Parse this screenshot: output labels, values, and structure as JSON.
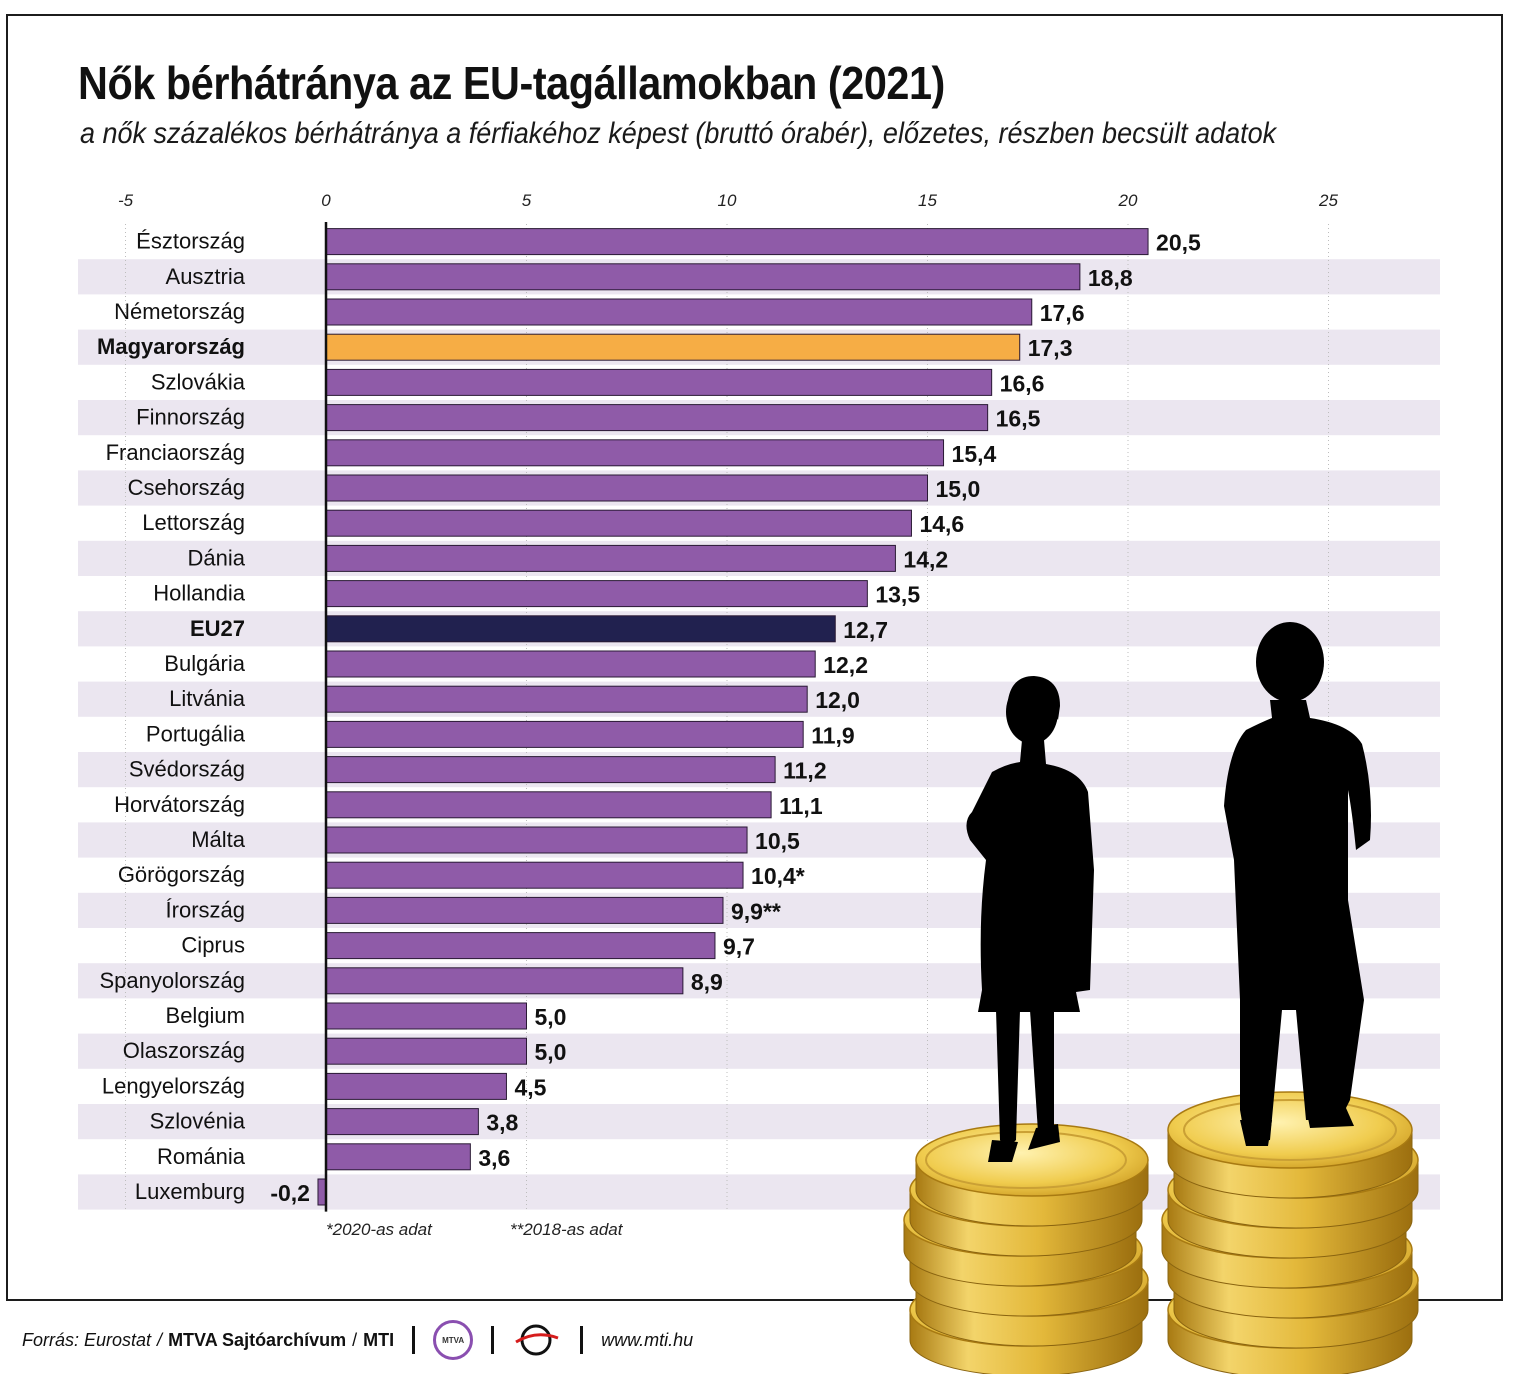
{
  "title": "Nők bérhátránya az EU-tagállamokban (2021)",
  "subtitle": "a nők százalékos bérhátránya a férfiakéhoz képest (bruttó órabér), előzetes, részben becsült adatok",
  "chart_data": {
    "type": "bar",
    "orientation": "horizontal",
    "title": "Nők bérhátránya az EU-tagállamokban (2021)",
    "subtitle": "a nők százalékos bérhátránya a férfiakéhoz képest (bruttó órabér), előzetes, részben becsült adatok",
    "xlim": [
      -5,
      25
    ],
    "x_ticks": [
      "-5",
      "0",
      "5",
      "10",
      "15",
      "20",
      "25"
    ],
    "tick_values": [
      -5,
      0,
      5,
      10,
      15,
      20,
      25
    ],
    "x_axis_position": "top",
    "grid": true,
    "alternating_row_bands": true,
    "categories": [
      "Észtország",
      "Ausztria",
      "Németország",
      "Magyarország",
      "Szlovákia",
      "Finnország",
      "Franciaország",
      "Csehország",
      "Lettország",
      "Dánia",
      "Hollandia",
      "EU27",
      "Bulgária",
      "Litvánia",
      "Portugália",
      "Svédország",
      "Horvátország",
      "Málta",
      "Görögország",
      "Írország",
      "Ciprus",
      "Spanyolország",
      "Belgium",
      "Olaszország",
      "Lengyelország",
      "Szlovénia",
      "Románia",
      "Luxemburg"
    ],
    "values": [
      20.5,
      18.8,
      17.6,
      17.3,
      16.6,
      16.5,
      15.4,
      15.0,
      14.6,
      14.2,
      13.5,
      12.7,
      12.2,
      12.0,
      11.9,
      11.2,
      11.1,
      10.5,
      10.4,
      9.9,
      9.7,
      8.9,
      5.0,
      5.0,
      4.5,
      3.8,
      3.6,
      -0.2
    ],
    "value_labels": [
      "20,5",
      "18,8",
      "17,6",
      "17,3",
      "16,6",
      "16,5",
      "15,4",
      "15,0",
      "14,6",
      "14,2",
      "13,5",
      "12,7",
      "12,2",
      "12,0",
      "11,9",
      "11,2",
      "11,1",
      "10,5",
      "10,4*",
      "9,9**",
      "9,7",
      "8,9",
      "5,0",
      "5,0",
      "4,5",
      "3,8",
      "3,6",
      "-0,2"
    ],
    "bold_categories": [
      "Magyarország",
      "EU27"
    ],
    "colors": {
      "default": "#8f5ba8",
      "highlight": "#f6ad45",
      "eu27": "#21214f",
      "band": "#ebe6f0",
      "axis": "#111111"
    },
    "highlight_map": {
      "Magyarország": "highlight",
      "EU27": "eu27"
    }
  },
  "footnotes": [
    "*2020-as adat",
    "**2018-as adat"
  ],
  "footer": {
    "source_label": "Forrás: Eurostat",
    "slash1": "/",
    "archive": "MTVA Sajtóarchívum",
    "slash2": "/",
    "agency": "MTI",
    "mtva_logo_text": "MTVA",
    "website": "www.mti.hu"
  },
  "illustration": {
    "icons": [
      "woman-silhouette-icon",
      "man-silhouette-icon",
      "coin-stack-icon"
    ],
    "colors": {
      "silhouette": "#000000",
      "coin": "#e9c23f",
      "coin_dark": "#b98a17",
      "coin_light": "#fbe89a"
    }
  }
}
